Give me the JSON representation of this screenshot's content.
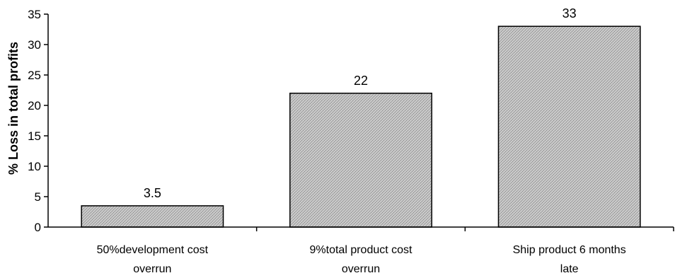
{
  "chart_data": {
    "type": "bar",
    "categories": [
      [
        "50%development cost",
        "overrun"
      ],
      [
        "9%total product cost",
        "overrun"
      ],
      [
        "Ship product 6 months",
        "late"
      ]
    ],
    "values": [
      3.5,
      22,
      33
    ],
    "data_labels": [
      "3.5",
      "22",
      "33"
    ],
    "title": "",
    "xlabel": "",
    "ylabel": "% Loss in total profits",
    "ylim": [
      0,
      35
    ],
    "yticks": [
      0,
      5,
      10,
      15,
      20,
      25,
      30,
      35
    ],
    "grid": false,
    "legend": "none",
    "bar_fill": "#bdbdbd",
    "bar_stroke": "#000000",
    "axis_color": "#000000"
  }
}
